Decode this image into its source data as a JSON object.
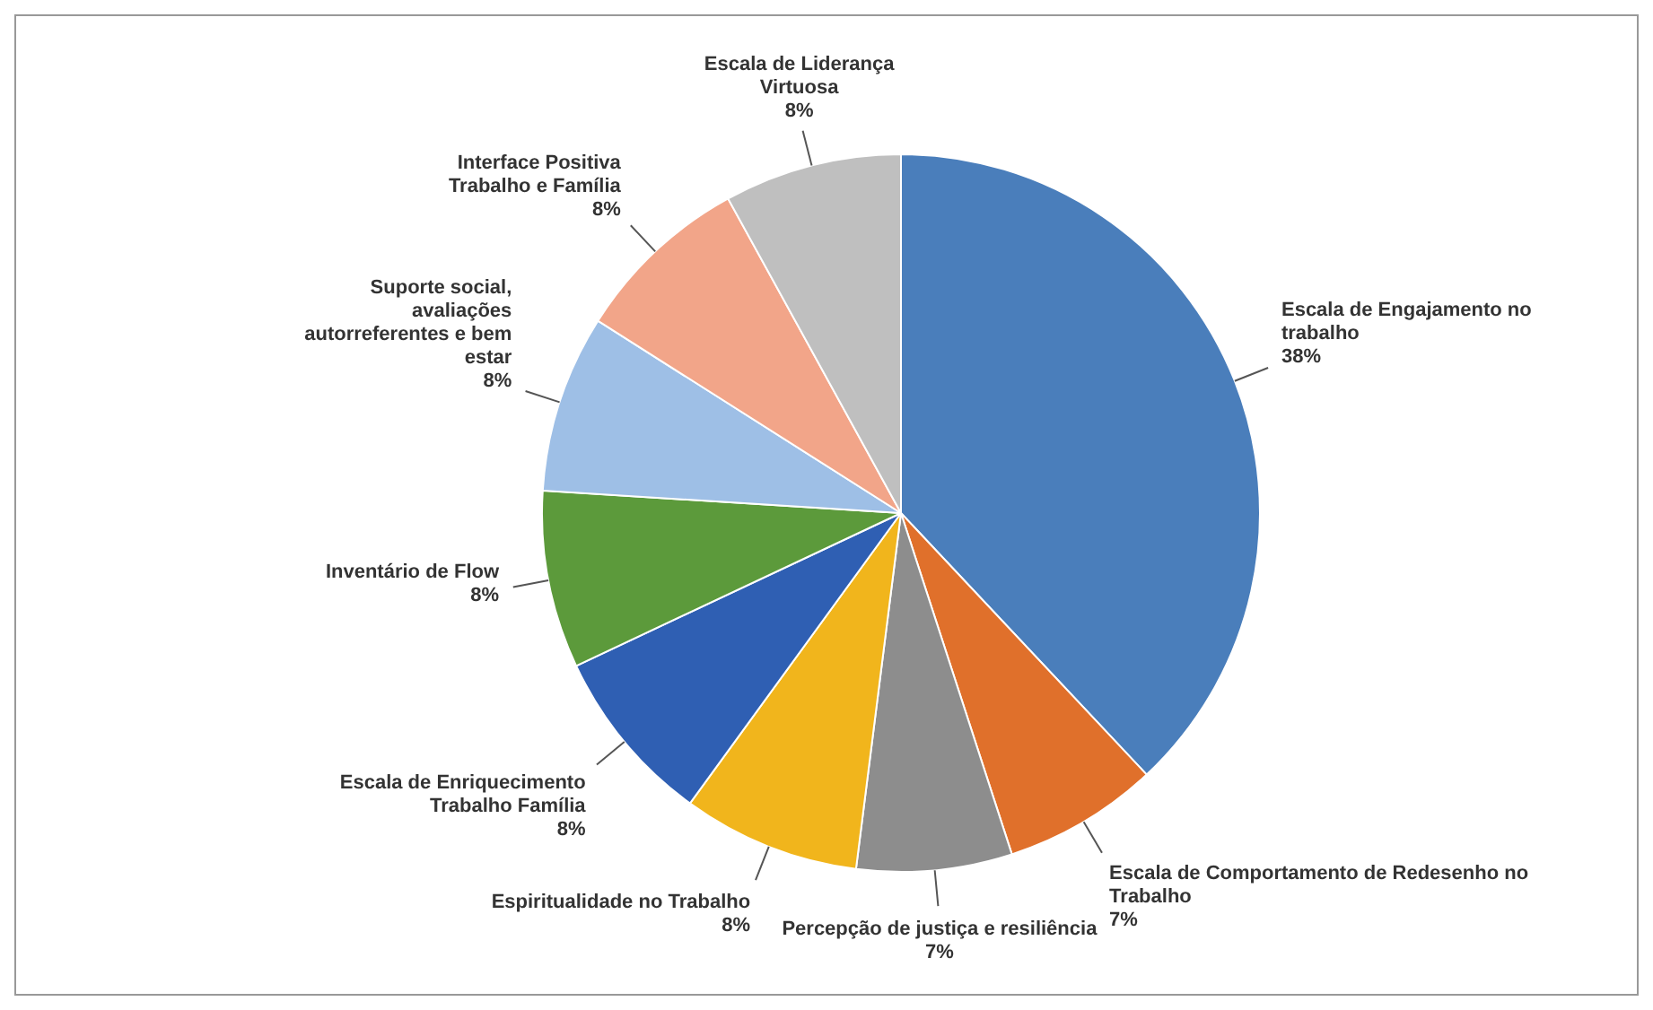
{
  "chart_data": {
    "type": "pie",
    "categories": [
      "Escala de Engajamento no trabalho",
      "Escala de Comportamento de Redesenho no Trabalho",
      "Percepção de justiça e resiliência",
      "Espiritualidade no Trabalho",
      "Escala de Enriquecimento Trabalho Família",
      "Inventário de Flow",
      "Suporte social, avaliações autorreferentes e bem estar",
      "Interface Positiva Trabalho e Família",
      "Escala de Liderança Virtuosa"
    ],
    "values": [
      38,
      7,
      7,
      8,
      8,
      8,
      8,
      8,
      8
    ],
    "value_labels": [
      "38%",
      "7%",
      "7%",
      "8%",
      "8%",
      "8%",
      "8%",
      "8%",
      "8%"
    ],
    "colors": [
      "#4a7ebb",
      "#e0702b",
      "#8d8d8d",
      "#f1b51c",
      "#2f5fb3",
      "#5c9a3b",
      "#9ebfe6",
      "#f2a589",
      "#bfbfbf"
    ]
  }
}
